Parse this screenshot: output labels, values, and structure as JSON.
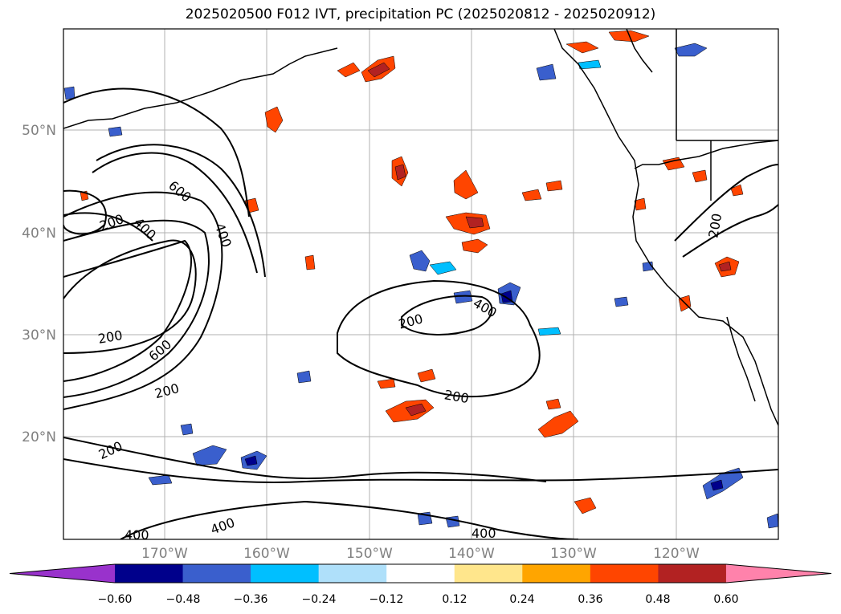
{
  "title": "2025020500 F012 IVT, precipitation PC (2025020812 - 2025020912)",
  "lat_labels": [
    "50°N",
    "40°N",
    "30°N",
    "20°N"
  ],
  "lon_labels": [
    "170°W",
    "160°W",
    "150°W",
    "140°W",
    "130°W",
    "120°W"
  ],
  "colorbar": {
    "ticks": [
      "−0.60",
      "−0.48",
      "−0.36",
      "−0.24",
      "−0.12",
      "0.12",
      "0.24",
      "0.36",
      "0.48",
      "0.60"
    ],
    "colors": [
      "#9932cc",
      "#00008b",
      "#3a5fcd",
      "#00bfff",
      "#afe0fa",
      "#ffffff",
      "#ffe68c",
      "#ffa500",
      "#ff4500",
      "#b22222",
      "#ff82ab"
    ]
  },
  "ivt_labels": [
    "600",
    "200",
    "400",
    "400",
    "200",
    "600",
    "200",
    "200",
    "200",
    "400",
    "200",
    "400",
    "400",
    "400",
    "200"
  ]
}
